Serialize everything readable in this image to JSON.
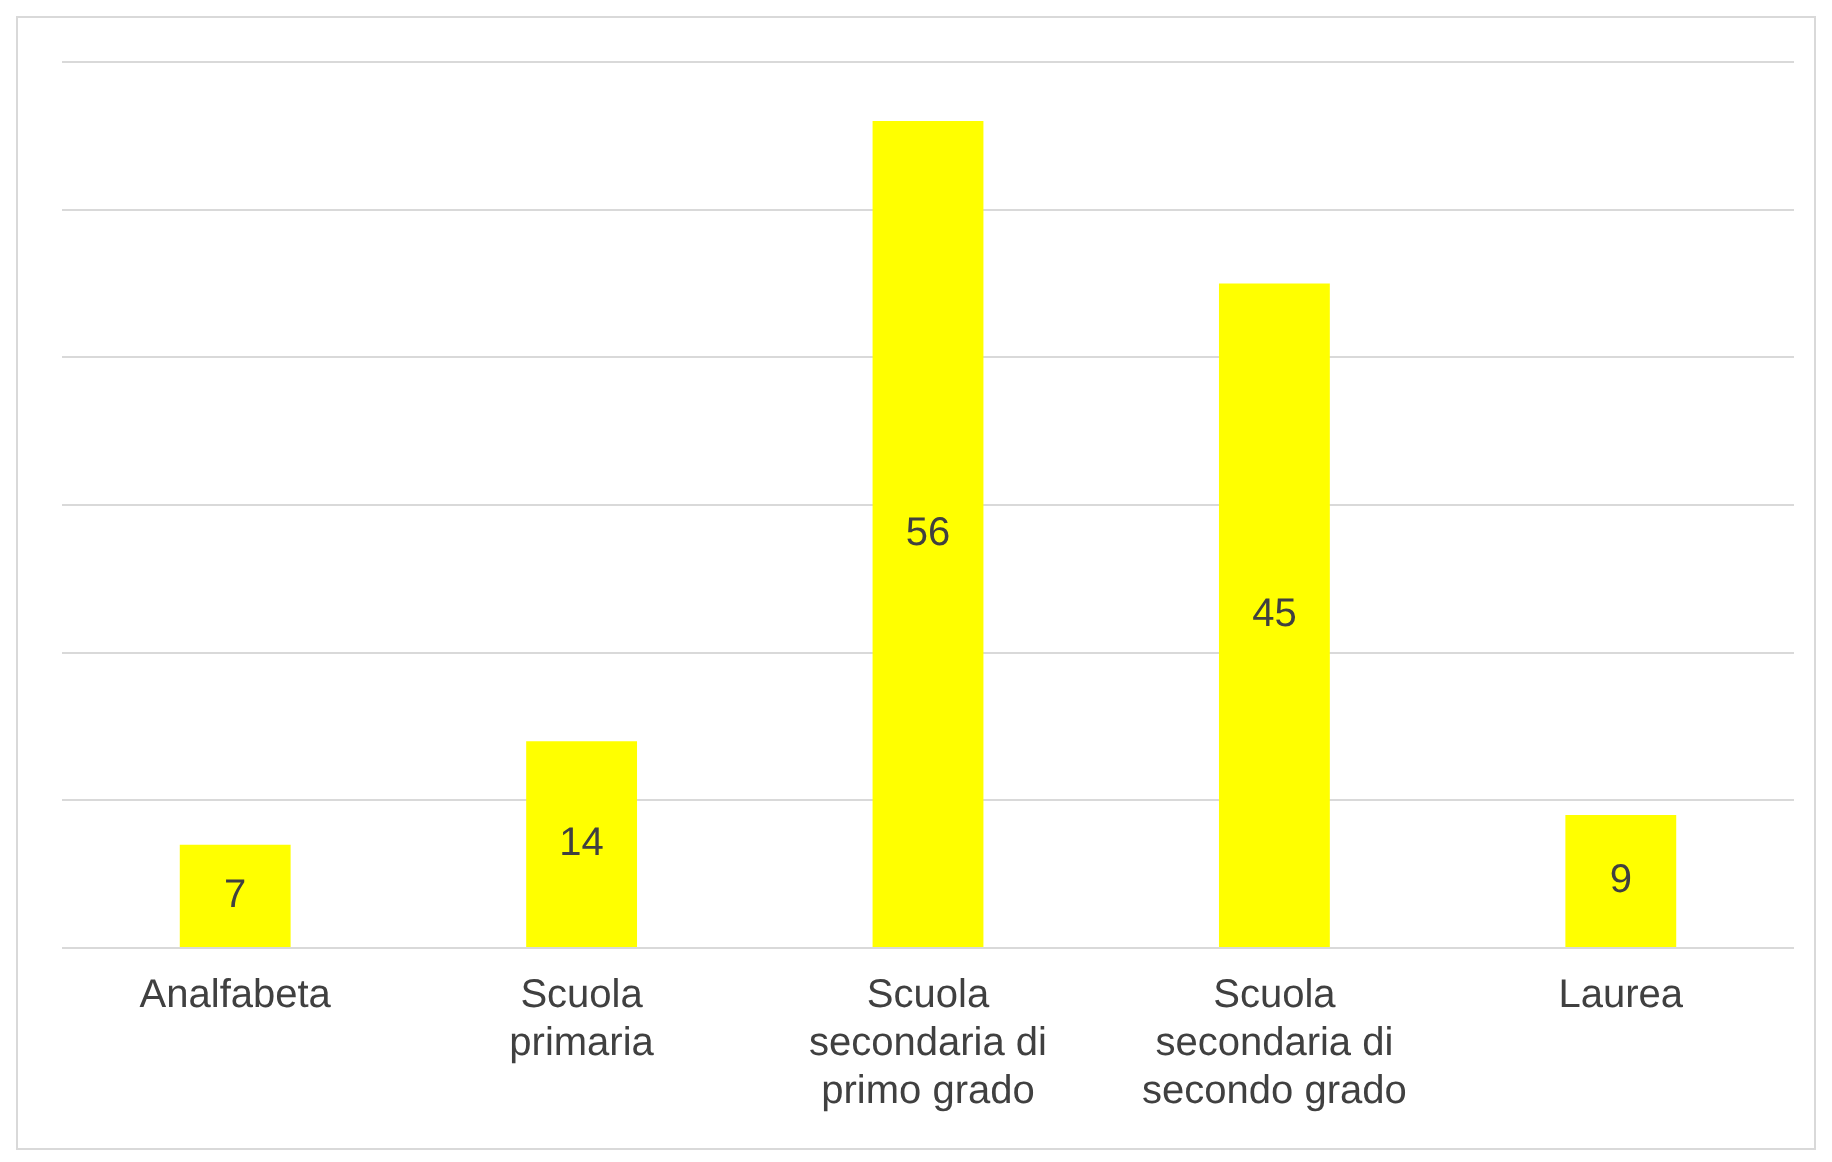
{
  "chart_data": {
    "type": "bar",
    "categories": [
      "Analfabeta",
      "Scuola primaria",
      "Scuola secondaria di primo grado",
      "Scuola secondaria di secondo grado",
      "Laurea"
    ],
    "values": [
      7,
      14,
      56,
      45,
      9
    ],
    "color": "#ffff00",
    "ylim": [
      0,
      60
    ],
    "yticks": [
      {
        "value": 0,
        "label": null
      },
      {
        "value": 10,
        "label": null
      },
      {
        "value": 20,
        "label": null
      },
      {
        "value": 30,
        "label": null
      },
      {
        "value": 40,
        "label": null
      },
      {
        "value": 50,
        "label": null
      },
      {
        "value": 60,
        "label": null
      }
    ],
    "grid": "y",
    "tick_labels": "x",
    "data_labels": true,
    "legend": false
  }
}
